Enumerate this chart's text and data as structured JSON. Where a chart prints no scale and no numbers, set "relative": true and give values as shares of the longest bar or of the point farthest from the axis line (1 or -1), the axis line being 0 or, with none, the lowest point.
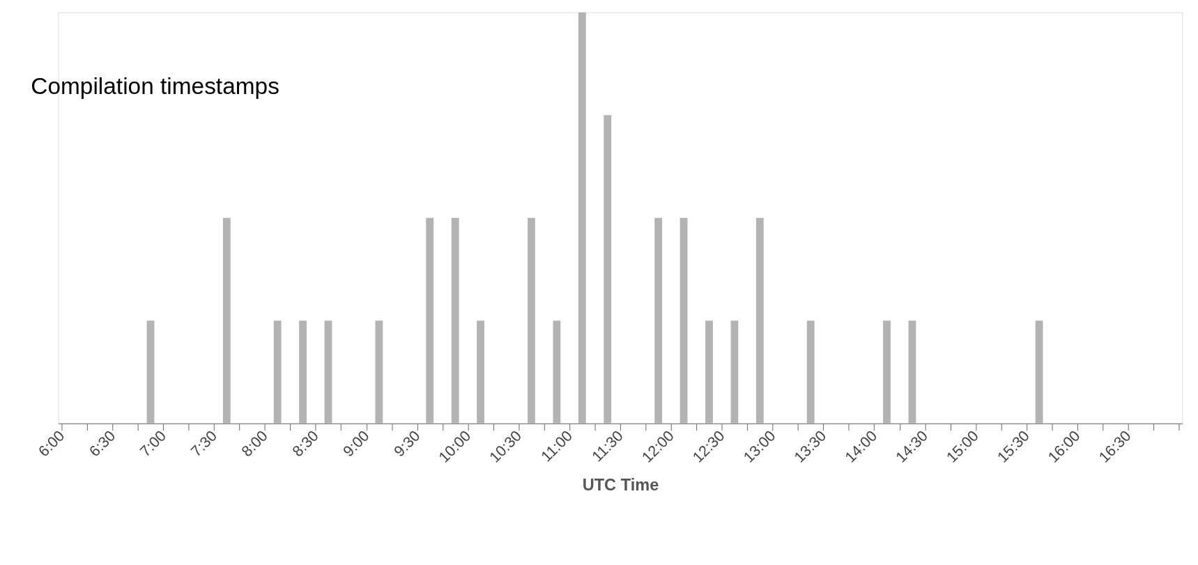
{
  "chart_data": {
    "type": "bar",
    "title": "Compilation timestamps",
    "xlabel": "UTC Time",
    "relative": true,
    "color": "#b3b3b3",
    "grid": false,
    "x": [
      6.875,
      7.625,
      8.125,
      8.375,
      8.625,
      9.125,
      9.625,
      9.875,
      10.125,
      10.625,
      10.875,
      11.125,
      11.375,
      11.875,
      12.125,
      12.375,
      12.625,
      12.875,
      13.375,
      14.125,
      14.375,
      15.625
    ],
    "values": [
      0.25,
      0.5,
      0.25,
      0.25,
      0.25,
      0.25,
      0.5,
      0.5,
      0.25,
      0.5,
      0.25,
      1,
      0.75,
      0.5,
      0.5,
      0.25,
      0.25,
      0.5,
      0.25,
      0.25,
      0.25,
      0.25
    ],
    "xlim": [
      6,
      17
    ],
    "xticks": [
      {
        "value": 6,
        "label": "6:00"
      },
      {
        "value": 6.25,
        "label": null
      },
      {
        "value": 6.5,
        "label": "6:30"
      },
      {
        "value": 6.75,
        "label": null
      },
      {
        "value": 7,
        "label": "7:00"
      },
      {
        "value": 7.25,
        "label": null
      },
      {
        "value": 7.5,
        "label": "7:30"
      },
      {
        "value": 7.75,
        "label": null
      },
      {
        "value": 8,
        "label": "8:00"
      },
      {
        "value": 8.25,
        "label": null
      },
      {
        "value": 8.5,
        "label": "8:30"
      },
      {
        "value": 8.75,
        "label": null
      },
      {
        "value": 9,
        "label": "9:00"
      },
      {
        "value": 9.25,
        "label": null
      },
      {
        "value": 9.5,
        "label": "9:30"
      },
      {
        "value": 9.75,
        "label": null
      },
      {
        "value": 10,
        "label": "10:00"
      },
      {
        "value": 10.25,
        "label": null
      },
      {
        "value": 10.5,
        "label": "10:30"
      },
      {
        "value": 10.75,
        "label": null
      },
      {
        "value": 11,
        "label": "11:00"
      },
      {
        "value": 11.25,
        "label": null
      },
      {
        "value": 11.5,
        "label": "11:30"
      },
      {
        "value": 11.75,
        "label": null
      },
      {
        "value": 12,
        "label": "12:00"
      },
      {
        "value": 12.25,
        "label": null
      },
      {
        "value": 12.5,
        "label": "12:30"
      },
      {
        "value": 12.75,
        "label": null
      },
      {
        "value": 13,
        "label": "13:00"
      },
      {
        "value": 13.25,
        "label": null
      },
      {
        "value": 13.5,
        "label": "13:30"
      },
      {
        "value": 13.75,
        "label": null
      },
      {
        "value": 14,
        "label": "14:00"
      },
      {
        "value": 14.25,
        "label": null
      },
      {
        "value": 14.5,
        "label": "14:30"
      },
      {
        "value": 14.75,
        "label": null
      },
      {
        "value": 15,
        "label": "15:00"
      },
      {
        "value": 15.25,
        "label": null
      },
      {
        "value": 15.5,
        "label": "15:30"
      },
      {
        "value": 15.75,
        "label": null
      },
      {
        "value": 16,
        "label": "16:00"
      },
      {
        "value": 16.25,
        "label": null
      },
      {
        "value": 16.5,
        "label": "16:30"
      },
      {
        "value": 16.75,
        "label": null
      },
      {
        "value": 17,
        "label": null
      }
    ]
  }
}
